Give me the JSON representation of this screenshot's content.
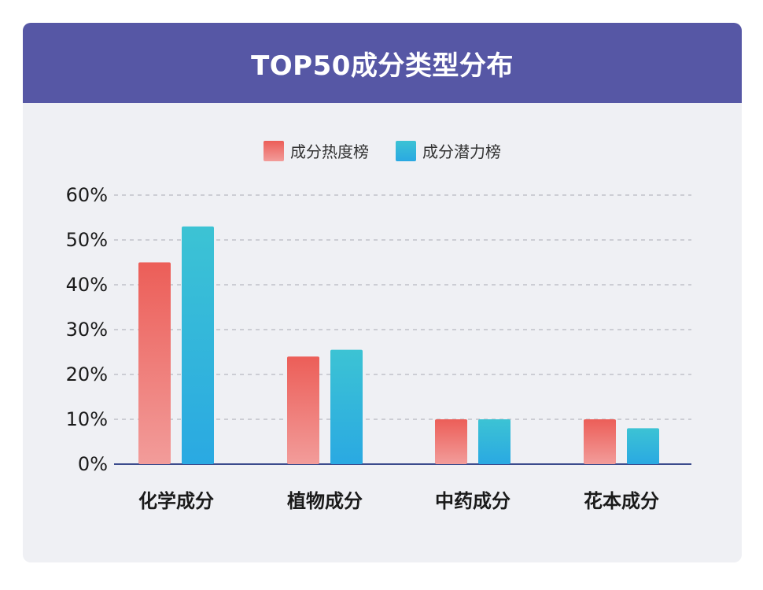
{
  "title": "TOP50成分类型分布",
  "colors": {
    "header_bg": "#5657a5",
    "card_bg": "#eff0f4",
    "series_hot_top": "#ec5e58",
    "series_hot_bottom": "#f29c9a",
    "series_potential_top": "#3cc3d4",
    "series_potential_bottom": "#2aa9e2",
    "grid": "#b8b8c0",
    "axis": "#3b4b8c"
  },
  "chart_data": {
    "type": "bar",
    "title": "TOP50成分类型分布",
    "categories": [
      "化学成分",
      "植物成分",
      "中药成分",
      "花本成分"
    ],
    "series": [
      {
        "name": "成分热度榜",
        "values": [
          45,
          24,
          10,
          10
        ]
      },
      {
        "name": "成分潜力榜",
        "values": [
          53,
          25.5,
          10,
          8
        ]
      }
    ],
    "xlabel": "",
    "ylabel": "",
    "ylim": [
      0,
      60
    ],
    "yticks": [
      "0%",
      "10%",
      "20%",
      "30%",
      "40%",
      "50%",
      "60%"
    ],
    "grid": "dashed horizontal",
    "legend_position": "top-center"
  }
}
